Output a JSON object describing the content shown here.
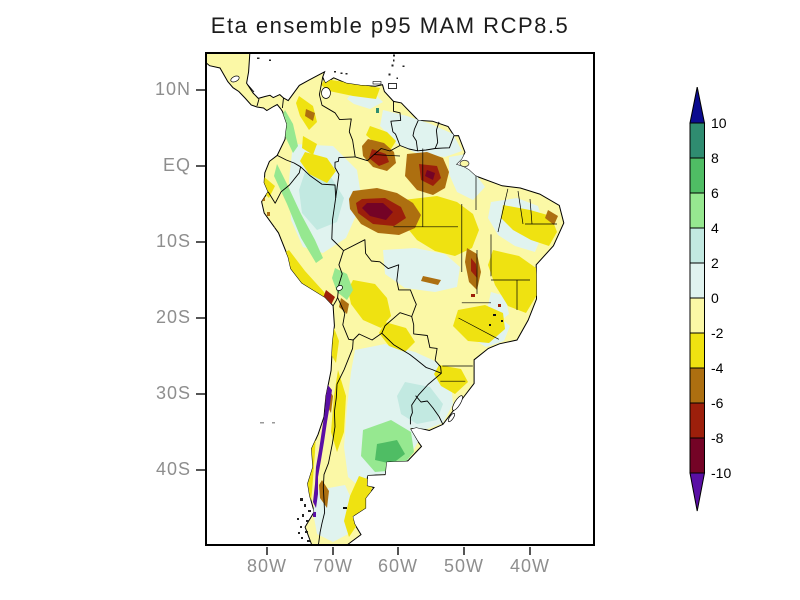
{
  "title": "Eta ensemble p95 MAM RCP8.5",
  "axes": {
    "lat_ticks": [
      "10N",
      "EQ",
      "10S",
      "20S",
      "30S",
      "40S"
    ],
    "lon_ticks": [
      "80W",
      "70W",
      "60W",
      "50W",
      "40W"
    ]
  },
  "colorbar": {
    "labels": [
      "10",
      "8",
      "6",
      "4",
      "2",
      "0",
      "-2",
      "-4",
      "-6",
      "-8",
      "-10"
    ],
    "segment_palette_keys": [
      "8_to_10",
      "6_to_8",
      "4_to_6",
      "2_to_4",
      "0_to_2",
      "neg2_to_0",
      "neg4_to_neg2",
      "neg6_to_neg4",
      "neg8_to_neg6",
      "neg10_to_neg8"
    ],
    "arrow_top_key": "above_10",
    "arrow_bottom_key": "below_neg10"
  },
  "palette": {
    "above_10": "#0B0B8F",
    "8_to_10": "#2F8C70",
    "6_to_8": "#4FBD64",
    "4_to_6": "#96E890",
    "2_to_4": "#C2E9E1",
    "0_to_2": "#E0F3EF",
    "neg2_to_0": "#FBF8A6",
    "neg4_to_neg2": "#EFE211",
    "neg6_to_neg4": "#AD6F10",
    "neg8_to_neg6": "#9C1F0B",
    "neg10_to_neg8": "#740326",
    "below_neg10": "#5A0FA5"
  }
}
